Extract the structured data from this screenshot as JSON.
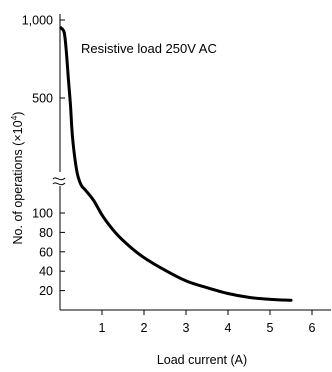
{
  "chart_data": {
    "type": "line",
    "title": "",
    "annotation": "Resistive load 250V AC",
    "xlabel": "Load current (A)",
    "ylabel": "No. of operations (×10⁴)",
    "ylabel_prefix": "No. of operations (",
    "ylabel_times": "×10",
    "ylabel_exp": "4",
    "ylabel_suffix": ")",
    "xlim": [
      0,
      6.3
    ],
    "x_ticks": [
      1,
      2,
      3,
      4,
      5,
      6
    ],
    "y_axis_broken": true,
    "y_ticks_lower": [
      20,
      40,
      60,
      80,
      100
    ],
    "y_ticks_upper": [
      500,
      1000
    ],
    "y_tick_labels": {
      "20": "20",
      "40": "40",
      "60": "60",
      "80": "80",
      "100": "100",
      "500": "500",
      "1000": "1,000"
    },
    "series": [
      {
        "x": [
          0.02,
          0.1,
          0.15,
          0.2,
          0.25,
          0.3,
          0.4,
          0.5,
          0.6,
          0.8,
          1.0,
          1.2,
          1.4,
          1.7,
          2.0,
          2.5,
          3.0,
          3.5,
          4.0,
          4.5,
          5.0,
          5.5
        ],
        "y": [
          950,
          920,
          800,
          620,
          470,
          340,
          210,
          155,
          135,
          113,
          98,
          86,
          76,
          64,
          54,
          41,
          30,
          23,
          17,
          13,
          11,
          10
        ],
        "color": "#000000"
      }
    ],
    "grid": false
  }
}
